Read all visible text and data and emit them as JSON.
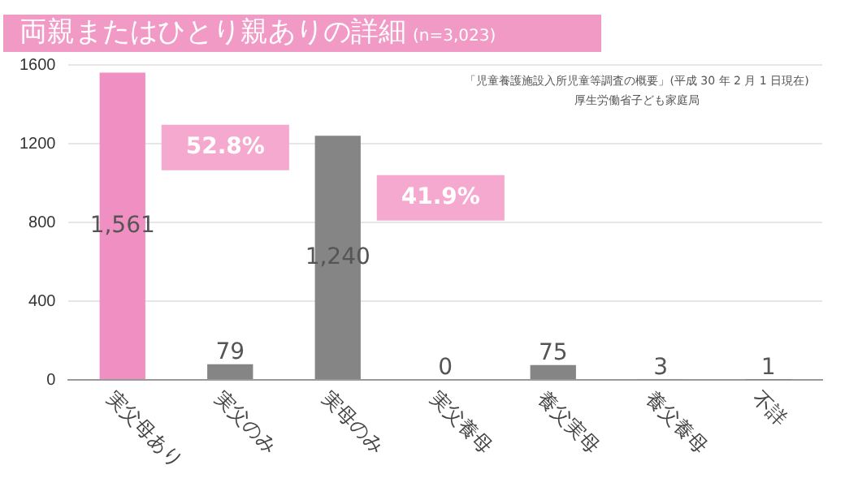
{
  "chart_data": {
    "type": "bar",
    "title": "両親またはひとり親ありの詳細",
    "subtitle": "(n=3,023)",
    "categories": [
      "実父母あり",
      "実父のみ",
      "実母のみ",
      "実父養母",
      "養父実母",
      "養父養母",
      "不詳"
    ],
    "values": [
      1561,
      79,
      1240,
      0,
      75,
      3,
      1
    ],
    "colors": [
      "#f08fc2",
      "#858585",
      "#858585",
      "#858585",
      "#858585",
      "#858585",
      "#858585"
    ],
    "value_labels": [
      "1,561",
      "79",
      "1,240",
      "0",
      "75",
      "3",
      "1"
    ],
    "ylim": [
      0,
      1600
    ],
    "yticks": [
      0,
      400,
      800,
      1200,
      1600
    ],
    "grid": "y",
    "legend": false,
    "annotations": [
      {
        "text": "52.8%",
        "x": "実父母あり",
        "y": 1180
      },
      {
        "text": "41.9%",
        "x": "実母のみ",
        "y": 925
      },
      "「児童養護施設入所児童等調査の概要」(平成 30 年 2 月 1 日現在)",
      "厚生労働省子ども家庭局"
    ]
  }
}
